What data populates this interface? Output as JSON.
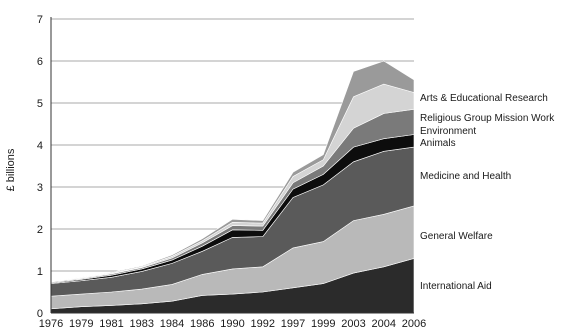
{
  "chart_data": {
    "type": "area",
    "stacked": true,
    "title": "",
    "xlabel": "",
    "ylabel": "£ billions",
    "ylim": [
      0,
      7
    ],
    "yticks": [
      0,
      1,
      2,
      3,
      4,
      5,
      6,
      7
    ],
    "grid": "horizontal",
    "x": [
      "1976",
      "1979",
      "1981",
      "1983",
      "1984",
      "1986",
      "1990",
      "1992",
      "1997",
      "1999",
      "2003",
      "2004",
      "2006"
    ],
    "series": [
      {
        "name": "International Aid",
        "color": "#2b2b2b",
        "values": [
          0.1,
          0.15,
          0.18,
          0.22,
          0.28,
          0.42,
          0.45,
          0.5,
          0.6,
          0.7,
          0.95,
          1.1,
          1.3
        ]
      },
      {
        "name": "General Welfare",
        "color": "#b9b9b9",
        "values": [
          0.3,
          0.3,
          0.32,
          0.35,
          0.4,
          0.5,
          0.6,
          0.6,
          0.95,
          1.0,
          1.25,
          1.25,
          1.25
        ]
      },
      {
        "name": "Medicine and Health",
        "color": "#5a5a5a",
        "values": [
          0.3,
          0.32,
          0.35,
          0.42,
          0.5,
          0.55,
          0.75,
          0.72,
          1.2,
          1.35,
          1.4,
          1.5,
          1.4
        ]
      },
      {
        "name": "Animals",
        "color": "#0d0d0d",
        "values": [
          0.02,
          0.03,
          0.05,
          0.06,
          0.08,
          0.12,
          0.18,
          0.15,
          0.2,
          0.25,
          0.35,
          0.3,
          0.3
        ]
      },
      {
        "name": "Environment",
        "color": "#7a7a7a",
        "values": [
          0.02,
          0.02,
          0.03,
          0.03,
          0.05,
          0.08,
          0.1,
          0.1,
          0.15,
          0.2,
          0.45,
          0.6,
          0.6
        ]
      },
      {
        "name": "Religious Group Mission Work",
        "color": "#d4d4d4",
        "values": [
          0.01,
          0.02,
          0.02,
          0.02,
          0.04,
          0.05,
          0.08,
          0.07,
          0.15,
          0.15,
          0.75,
          0.7,
          0.4
        ]
      },
      {
        "name": "Arts & Educational Research",
        "color": "#9a9a9a",
        "values": [
          0.01,
          0.01,
          0.02,
          0.02,
          0.03,
          0.05,
          0.07,
          0.06,
          0.1,
          0.12,
          0.6,
          0.55,
          0.3
        ]
      }
    ]
  }
}
